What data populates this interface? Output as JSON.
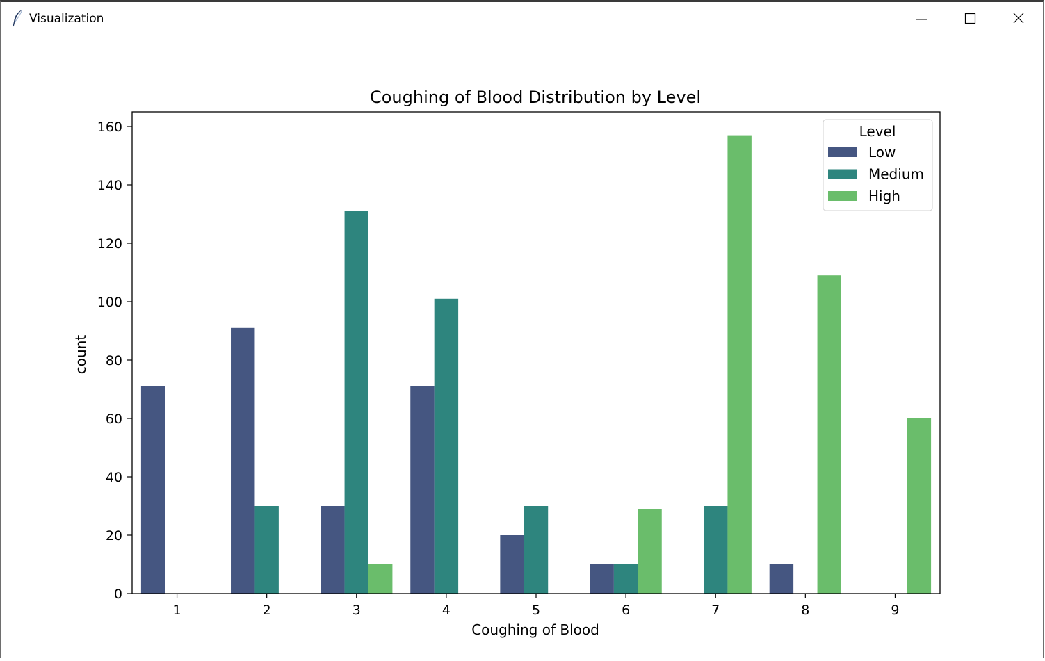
{
  "window": {
    "title": "Visualization",
    "icon": "feather-icon",
    "controls": [
      "minimize-icon",
      "maximize-icon",
      "close-icon"
    ]
  },
  "chart_data": {
    "type": "bar",
    "title": "Coughing of Blood Distribution by Level",
    "xlabel": "Coughing of Blood",
    "ylabel": "count",
    "categories": [
      "1",
      "2",
      "3",
      "4",
      "5",
      "6",
      "7",
      "8",
      "9"
    ],
    "ylim": [
      0,
      165
    ],
    "yticks": [
      0,
      20,
      40,
      60,
      80,
      100,
      120,
      140,
      160
    ],
    "grid": false,
    "legend": {
      "title": "Level",
      "placement": "top-right"
    },
    "series": [
      {
        "name": "Low",
        "color": "#455681",
        "values": [
          71,
          91,
          30,
          71,
          20,
          10,
          0,
          10,
          0
        ]
      },
      {
        "name": "Medium",
        "color": "#2e857e",
        "values": [
          0,
          30,
          131,
          101,
          30,
          10,
          30,
          0,
          0
        ]
      },
      {
        "name": "High",
        "color": "#6abd6b",
        "values": [
          0,
          0,
          10,
          0,
          0,
          29,
          157,
          109,
          60
        ]
      }
    ]
  }
}
